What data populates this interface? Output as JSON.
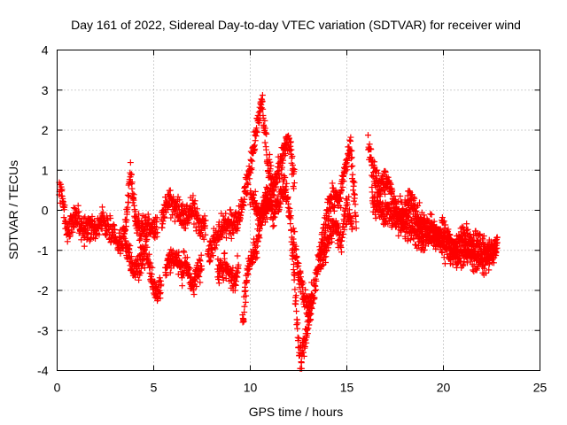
{
  "chart_data": {
    "type": "scatter",
    "title": "Day 161 of 2022, Sidereal Day-to-day VTEC variation (SDTVAR) for receiver wind",
    "xlabel": "GPS time / hours",
    "ylabel": "SDTVAR / TECUs",
    "xlim": [
      0,
      25
    ],
    "ylim": [
      -4,
      4
    ],
    "x_ticks": [
      0,
      5,
      10,
      15,
      20,
      25
    ],
    "y_ticks": [
      -4,
      -3,
      -2,
      -1,
      0,
      1,
      2,
      3,
      4
    ],
    "grid": true,
    "marker": "plus",
    "series_color": "#ff0000",
    "sample_interval_hours": 0.0125,
    "series": [
      {
        "name": "SDTVAR",
        "segments": [
          {
            "x": [
              0.1,
              0.25,
              0.5,
              0.8,
              1.1,
              1.4,
              1.7,
              2.0,
              2.3
            ],
            "y": [
              0.6,
              0.3,
              -0.5,
              -0.3,
              -0.2,
              -0.5,
              -0.4,
              -0.6,
              -0.3
            ]
          },
          {
            "x": [
              2.3,
              2.6,
              2.9,
              3.2,
              3.5,
              3.8,
              4.0,
              4.3,
              4.6,
              4.9,
              5.2
            ],
            "y": [
              -0.2,
              -0.4,
              -0.6,
              -0.8,
              -0.6,
              0.9,
              0.0,
              -0.6,
              -0.3,
              -0.5,
              -0.4
            ]
          },
          {
            "x": [
              3.5,
              3.8,
              4.0,
              4.3,
              4.6,
              4.9,
              5.2,
              5.4
            ],
            "y": [
              -0.8,
              -1.2,
              -1.6,
              -1.3,
              -1.0,
              -1.6,
              -2.1,
              -1.8
            ]
          },
          {
            "x": [
              5.4,
              5.8,
              6.2,
              6.6,
              7.0,
              7.4,
              7.7
            ],
            "y": [
              -0.3,
              0.3,
              0.0,
              -0.2,
              0.0,
              -0.4,
              -0.5
            ]
          },
          {
            "x": [
              5.6,
              5.8,
              6.1,
              6.4,
              6.7,
              7.0,
              7.2,
              7.5
            ],
            "y": [
              -1.6,
              -1.2,
              -1.2,
              -1.5,
              -1.3,
              -1.9,
              -1.6,
              -1.4
            ]
          },
          {
            "x": [
              7.8,
              8.2,
              8.6,
              9.0,
              9.4,
              9.7,
              10.0,
              10.3,
              10.6,
              10.9,
              11.2
            ],
            "y": [
              -1.1,
              -0.8,
              -0.3,
              -0.4,
              -0.2,
              0.4,
              1.0,
              2.0,
              2.8,
              1.2,
              0.6
            ]
          },
          {
            "x": [
              8.3,
              8.7,
              9.1,
              9.4
            ],
            "y": [
              -1.6,
              -1.3,
              -1.8,
              -1.5
            ]
          },
          {
            "x": [
              9.6,
              9.8,
              10.0,
              10.3,
              10.6,
              10.9,
              11.2,
              11.5,
              11.8,
              12.1,
              12.4,
              12.6,
              12.9,
              13.2
            ],
            "y": [
              -2.9,
              -1.8,
              -1.2,
              -1.0,
              0.0,
              0.4,
              -0.2,
              0.3,
              0.6,
              -0.3,
              -2.7,
              -3.8,
              -3.1,
              -2.0
            ]
          },
          {
            "x": [
              10.0,
              10.4,
              10.8,
              11.2,
              11.6,
              12.0,
              12.3
            ],
            "y": [
              0.4,
              0.0,
              -0.1,
              0.5,
              1.3,
              1.8,
              0.5
            ]
          },
          {
            "x": [
              12.2,
              12.5,
              12.8,
              13.1,
              13.4,
              13.7,
              14.0,
              14.3,
              14.6,
              14.9,
              15.2,
              15.5
            ],
            "y": [
              -0.6,
              -1.5,
              -2.2,
              -2.6,
              -1.8,
              -0.7,
              -0.1,
              0.4,
              0.2,
              1.0,
              1.6,
              -0.5
            ]
          },
          {
            "x": [
              13.5,
              13.8,
              14.1,
              14.4,
              14.7,
              15.0,
              15.3
            ],
            "y": [
              -1.2,
              -1.1,
              -0.6,
              -0.3,
              -0.9,
              0.1,
              -0.4
            ]
          },
          {
            "x": [
              16.1,
              16.4,
              16.7,
              17.0,
              17.3,
              17.6,
              17.9,
              18.2,
              18.5,
              18.8,
              19.1,
              19.4,
              19.7,
              20.0,
              20.3,
              20.6,
              20.9,
              21.2,
              21.5,
              21.8,
              22.1,
              22.4,
              22.8
            ],
            "y": [
              1.7,
              0.9,
              0.6,
              0.8,
              0.4,
              0.0,
              -0.2,
              0.3,
              0.0,
              -0.2,
              -0.5,
              -0.4,
              -0.6,
              -0.4,
              -0.8,
              -1.0,
              -0.7,
              -0.6,
              -0.9,
              -0.8,
              -1.0,
              -1.1,
              -0.8
            ]
          },
          {
            "x": [
              16.3,
              16.8,
              17.3,
              17.8,
              18.3,
              18.8,
              19.3,
              19.8,
              20.3,
              20.8,
              21.3,
              21.8,
              22.3,
              22.8
            ],
            "y": [
              0.2,
              0.0,
              -0.1,
              -0.3,
              -0.5,
              -0.7,
              -0.6,
              -0.8,
              -1.0,
              -1.2,
              -1.0,
              -1.3,
              -1.2,
              -0.9
            ]
          }
        ]
      }
    ]
  }
}
